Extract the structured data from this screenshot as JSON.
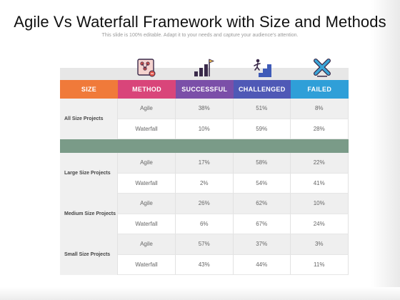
{
  "title": "Agile Vs Waterfall Framework with Size and Methods",
  "subtitle": "This slide is 100% editable. Adapt it to your needs and capture your audience's attention.",
  "icons": [
    "clipboard-chart-icon",
    "growth-bars-flag-icon",
    "climbing-stairs-icon",
    "failed-x-icon"
  ],
  "headers": {
    "size": "SIZE",
    "method": "METHOD",
    "successful": "SUCCESSFUL",
    "challenged": "CHALLENGED",
    "failed": "FAILED"
  },
  "header_colors": {
    "size": "#f07a3a",
    "method": "#d9457a",
    "successful": "#7b4fa8",
    "challenged": "#4f59b6",
    "failed": "#2f9fd8"
  },
  "groups": [
    {
      "label": "All Size Projects",
      "rows": [
        {
          "method": "Agile",
          "successful": "38%",
          "challenged": "51%",
          "failed": "8%"
        },
        {
          "method": "Waterfall",
          "successful": "10%",
          "challenged": "59%",
          "failed": "28%"
        }
      ]
    },
    {
      "label": "Large Size Projects",
      "rows": [
        {
          "method": "Agile",
          "successful": "17%",
          "challenged": "58%",
          "failed": "22%"
        },
        {
          "method": "Waterfall",
          "successful": "2%",
          "challenged": "54%",
          "failed": "41%"
        }
      ]
    },
    {
      "label": "Medium Size Projects",
      "rows": [
        {
          "method": "Agile",
          "successful": "26%",
          "challenged": "62%",
          "failed": "10%"
        },
        {
          "method": "Waterfall",
          "successful": "6%",
          "challenged": "67%",
          "failed": "24%"
        }
      ]
    },
    {
      "label": "Small Size Projects",
      "rows": [
        {
          "method": "Agile",
          "successful": "57%",
          "challenged": "37%",
          "failed": "3%"
        },
        {
          "method": "Waterfall",
          "successful": "43%",
          "challenged": "44%",
          "failed": "11%"
        }
      ]
    }
  ],
  "separator_color": "#7a9b88"
}
